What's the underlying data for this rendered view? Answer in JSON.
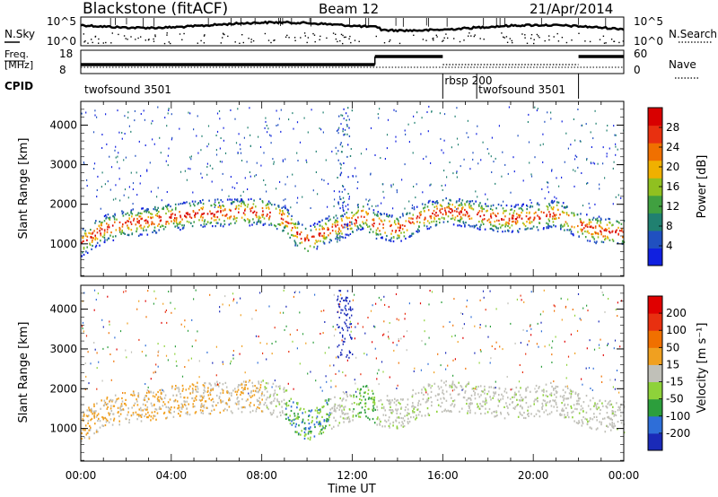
{
  "header": {
    "station": "Blackstone (fitACF)",
    "beam": "Beam 12",
    "date": "21/Apr/2014"
  },
  "side_labels": {
    "nsky": "N.Sky",
    "nsky_ticks": [
      "10^5",
      "10^0"
    ],
    "nsearch": "N.Search",
    "nsearch_ticks": [
      "10^5",
      "10^0"
    ],
    "freq_line1": "Freq.",
    "freq_line2": "[MHz]",
    "freq_ticks": [
      "18",
      "8"
    ],
    "nave": "Nave",
    "nave_ticks": [
      "60",
      "0"
    ],
    "cpid": "CPID"
  },
  "cpid_segments": [
    {
      "label": "twofsound 3501",
      "start_h": 0,
      "end_h": 16
    },
    {
      "label": "rbsp 200",
      "start_h": 16,
      "end_h": 17.5
    },
    {
      "label": "twofsound 3501",
      "start_h": 17.5,
      "end_h": 22
    }
  ],
  "chart_data": [
    {
      "type": "heatmap",
      "name": "power",
      "ylabel": "Slant Range [km]",
      "y_ticks": [
        "1000",
        "2000",
        "3000",
        "4000"
      ],
      "ylim": [
        180,
        4600
      ],
      "xlim_hours": [
        0,
        24
      ],
      "colorbar_label": "Power [dB]",
      "colorbar_ticks": [
        "4",
        "8",
        "12",
        "16",
        "20",
        "24",
        "28"
      ],
      "colorbar_colors": [
        "#1020e0",
        "#2050c0",
        "#208070",
        "#40a040",
        "#90c020",
        "#f0b000",
        "#f07000",
        "#e83010",
        "#d80000"
      ],
      "band_centerline_km": [
        [
          0,
          1050
        ],
        [
          1,
          1400
        ],
        [
          2,
          1550
        ],
        [
          3,
          1600
        ],
        [
          4,
          1700
        ],
        [
          5,
          1780
        ],
        [
          6,
          1800
        ],
        [
          7,
          1820
        ],
        [
          8,
          1850
        ],
        [
          9,
          1650
        ],
        [
          9.5,
          1300
        ],
        [
          10,
          1100
        ],
        [
          10.5,
          1250
        ],
        [
          11,
          1400
        ],
        [
          12,
          1600
        ],
        [
          12.5,
          1750
        ],
        [
          13,
          1500
        ],
        [
          14,
          1400
        ],
        [
          15,
          1700
        ],
        [
          16,
          1850
        ],
        [
          17,
          1800
        ],
        [
          18,
          1700
        ],
        [
          19,
          1650
        ],
        [
          20,
          1700
        ],
        [
          21,
          1800
        ],
        [
          22,
          1500
        ],
        [
          23,
          1350
        ],
        [
          24,
          1300
        ]
      ]
    },
    {
      "type": "heatmap",
      "name": "velocity",
      "ylabel": "Slant Range [km]",
      "y_ticks": [
        "1000",
        "2000",
        "3000",
        "4000"
      ],
      "ylim": [
        180,
        4600
      ],
      "xlim_hours": [
        0,
        24
      ],
      "colorbar_label": "Velocity [m s⁻¹]",
      "colorbar_ticks": [
        "200",
        "100",
        "50",
        "15",
        "-15",
        "-50",
        "-100",
        "-200"
      ],
      "colorbar_colors": [
        "#1a2ab8",
        "#2e6ed8",
        "#2c9e3c",
        "#8ed23a",
        "#c0c0b8",
        "#f0a020",
        "#f07000",
        "#e83010",
        "#e00000"
      ],
      "x_ticks": [
        "00:00",
        "04:00",
        "08:00",
        "12:00",
        "16:00",
        "20:00",
        "00:00"
      ],
      "xlabel": "Time UT"
    }
  ]
}
